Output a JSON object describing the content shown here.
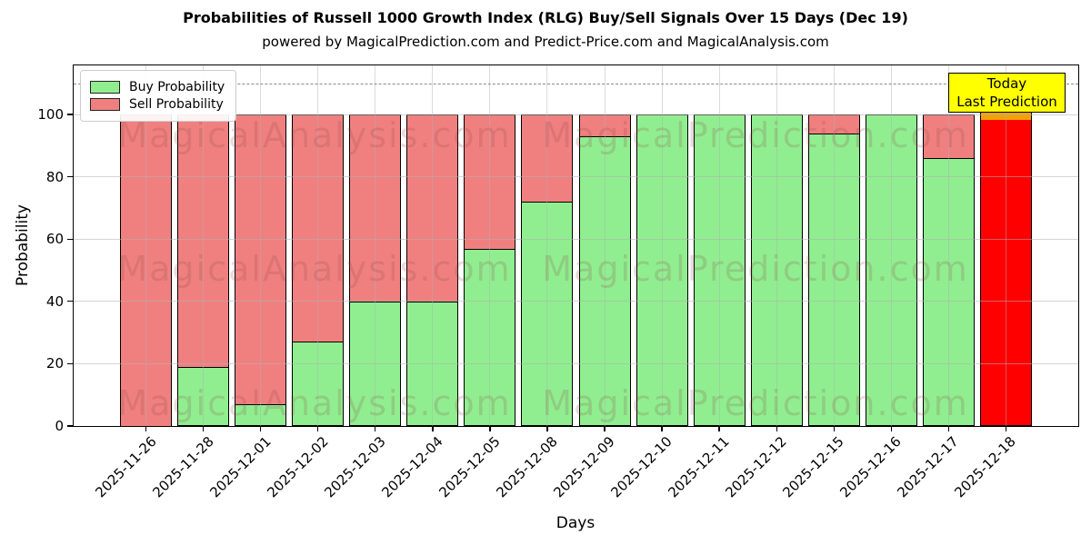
{
  "title": "Probabilities of Russell 1000 Growth Index (RLG) Buy/Sell Signals Over 15 Days (Dec 19)",
  "subtitle": "powered by MagicalPrediction.com and Predict-Price.com and MagicalAnalysis.com",
  "axes": {
    "ylabel": "Probability",
    "xlabel": "Days",
    "yticks": [
      0,
      20,
      40,
      60,
      80,
      100
    ],
    "ylim": [
      0,
      116
    ],
    "grid": true,
    "dashed_line_y": 110
  },
  "legend": {
    "position": "top-left",
    "items": [
      {
        "label": "Buy Probability",
        "color": "#90ee90"
      },
      {
        "label": "Sell Probability",
        "color": "#f08080"
      }
    ]
  },
  "annotation_box": {
    "lines": [
      "Today",
      "Last Prediction"
    ],
    "bg_color": "#ffff00",
    "border_color": "#000000"
  },
  "watermarks": {
    "left_text": "MagicalAnalysis.com",
    "right_text": "MagicalPrediction.com"
  },
  "colors": {
    "buy": "#90ee90",
    "sell": "#f08080",
    "today": "#ff0000",
    "today_top_edge": "#f2a202",
    "bar_edge": "#000000"
  },
  "chart_data": {
    "type": "bar",
    "stacked": true,
    "title": "Probabilities of Russell 1000 Growth Index (RLG) Buy/Sell Signals Over 15 Days (Dec 19)",
    "xlabel": "Days",
    "ylabel": "Probability",
    "ylim": [
      0,
      116
    ],
    "legend_position": "upper left",
    "grid": true,
    "categories": [
      "2025-11-26",
      "2025-11-28",
      "2025-12-01",
      "2025-12-02",
      "2025-12-03",
      "2025-12-04",
      "2025-12-05",
      "2025-12-08",
      "2025-12-09",
      "2025-12-10",
      "2025-12-11",
      "2025-12-12",
      "2025-12-15",
      "2025-12-16",
      "2025-12-17",
      "2025-12-18"
    ],
    "series": [
      {
        "name": "Buy Probability",
        "color": "#90ee90",
        "values": [
          0,
          19,
          7,
          27,
          40,
          40,
          57,
          72,
          93,
          100,
          100,
          100,
          94,
          100,
          86,
          0
        ]
      },
      {
        "name": "Sell Probability",
        "color": "#f08080",
        "values": [
          100,
          81,
          93,
          73,
          60,
          60,
          43,
          28,
          7,
          0,
          0,
          0,
          6,
          0,
          14,
          0
        ]
      }
    ],
    "today_bar": {
      "category": "2025-12-18",
      "index": 15,
      "height": 110,
      "color": "#ff0000"
    },
    "dashed_guide_line_y": 110
  }
}
